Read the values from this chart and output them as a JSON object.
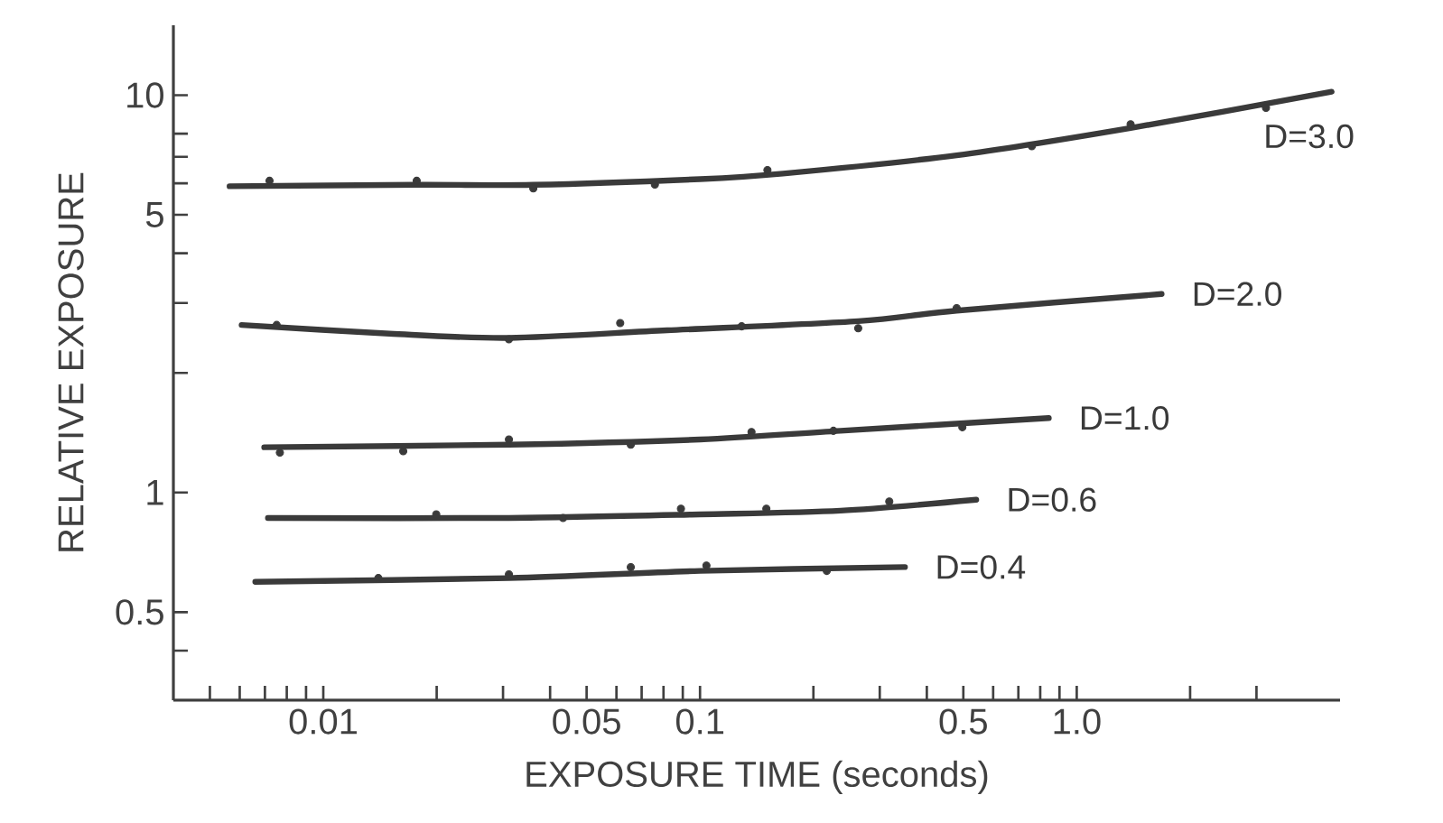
{
  "chart_data": {
    "type": "line",
    "xlabel": "EXPOSURE TIME (seconds)",
    "ylabel": "RELATIVE EXPOSURE",
    "log": "xy",
    "xlim": [
      0.004,
      5
    ],
    "ylim": [
      0.3,
      15
    ],
    "xticks": [
      {
        "value": 0.005,
        "label": null
      },
      {
        "value": 0.006,
        "label": null
      },
      {
        "value": 0.007,
        "label": null
      },
      {
        "value": 0.008,
        "label": null
      },
      {
        "value": 0.009,
        "label": null
      },
      0.01,
      {
        "value": 0.02,
        "label": null
      },
      {
        "value": 0.03,
        "label": null
      },
      {
        "value": 0.04,
        "label": null
      },
      0.05,
      {
        "value": 0.06,
        "label": null
      },
      {
        "value": 0.07,
        "label": null
      },
      {
        "value": 0.08,
        "label": null
      },
      {
        "value": 0.09,
        "label": null
      },
      0.1,
      {
        "value": 0.2,
        "label": null
      },
      {
        "value": 0.3,
        "label": null
      },
      {
        "value": 0.4,
        "label": null
      },
      0.5,
      {
        "value": 0.6,
        "label": null
      },
      {
        "value": 0.7,
        "label": null
      },
      {
        "value": 0.8,
        "label": null
      },
      {
        "value": 0.9,
        "label": null
      },
      {
        "value": 1,
        "label": "1.0"
      },
      {
        "value": 2,
        "label": null
      },
      {
        "value": 3,
        "label": null
      }
    ],
    "yticks": [
      {
        "value": 0.4,
        "label": null
      },
      0.5,
      1,
      {
        "value": 2,
        "label": null
      },
      {
        "value": 3,
        "label": null
      },
      {
        "value": 4,
        "label": null
      },
      5,
      {
        "value": 6,
        "label": null
      },
      {
        "value": 7,
        "label": null
      },
      {
        "value": 8,
        "label": null
      },
      10
    ],
    "series": [
      {
        "name": "D=3.0",
        "color": "#3a3a3a",
        "marker": "none",
        "x": [
          0.00564,
          0.0177,
          0.0361,
          0.1,
          0.166,
          0.48,
          1.39,
          4.75
        ],
        "values": [
          5.9,
          5.95,
          5.95,
          6.15,
          6.35,
          7.06,
          8.27,
          10.2
        ]
      },
      {
        "type": "scatter",
        "color": "#3a3a3a",
        "marker": "circle",
        "x": [
          0.0072,
          0.0177,
          0.0361,
          0.0759,
          0.151,
          0.76,
          1.39,
          3.18
        ],
        "values": [
          6.09,
          6.09,
          5.83,
          5.96,
          6.48,
          7.44,
          8.45,
          9.29
        ]
      },
      {
        "name": "D=2.0",
        "color": "#3a3a3a",
        "marker": "none",
        "x": [
          0.00607,
          0.015,
          0.0311,
          0.0817,
          0.263,
          0.48,
          1.68
        ],
        "values": [
          2.64,
          2.51,
          2.45,
          2.56,
          2.7,
          2.87,
          3.16
        ]
      },
      {
        "type": "scatter",
        "color": "#3a3a3a",
        "marker": "circle",
        "x": [
          0.00752,
          0.0311,
          0.0614,
          0.129,
          0.263,
          0.48
        ],
        "values": [
          2.64,
          2.43,
          2.67,
          2.62,
          2.59,
          2.91
        ]
      },
      {
        "name": "D=1.0",
        "color": "#3a3a3a",
        "marker": "none",
        "x": [
          0.00697,
          0.0311,
          0.1,
          0.236,
          0.843
        ],
        "values": [
          1.3,
          1.32,
          1.36,
          1.43,
          1.54
        ]
      },
      {
        "type": "scatter",
        "color": "#3a3a3a",
        "marker": "circle",
        "x": [
          0.00767,
          0.0163,
          0.0311,
          0.0655,
          0.137,
          0.226,
          0.497
        ],
        "values": [
          1.26,
          1.27,
          1.36,
          1.32,
          1.42,
          1.43,
          1.46
        ]
      },
      {
        "name": "D=0.6",
        "color": "#3a3a3a",
        "marker": "none",
        "x": [
          0.00713,
          0.0311,
          0.1,
          0.236,
          0.541
        ],
        "values": [
          0.863,
          0.863,
          0.881,
          0.9,
          0.959
        ]
      },
      {
        "type": "scatter",
        "color": "#3a3a3a",
        "marker": "circle",
        "x": [
          0.01995,
          0.0433,
          0.089,
          0.15,
          0.318
        ],
        "values": [
          0.881,
          0.863,
          0.91,
          0.91,
          0.949
        ]
      },
      {
        "name": "D=0.4",
        "color": "#3a3a3a",
        "marker": "none",
        "x": [
          0.0066,
          0.0311,
          0.1,
          0.35
        ],
        "values": [
          0.596,
          0.609,
          0.635,
          0.649
        ]
      },
      {
        "type": "scatter",
        "color": "#3a3a3a",
        "marker": "circle",
        "x": [
          0.014,
          0.0311,
          0.0655,
          0.104,
          0.217
        ],
        "values": [
          0.609,
          0.622,
          0.649,
          0.655,
          0.635
        ]
      }
    ]
  }
}
